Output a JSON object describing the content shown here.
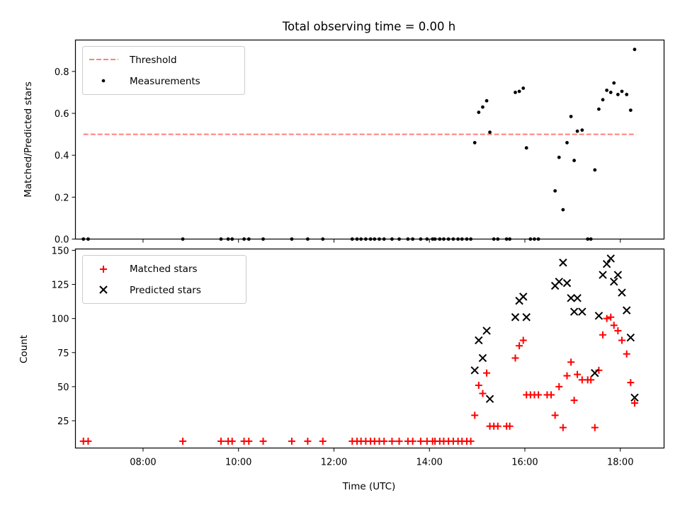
{
  "chart_data": [
    {
      "type": "scatter",
      "title": "Total observing time = 0.00 h",
      "xlabel": "",
      "ylabel": "Matched/Predicted stars",
      "xlim": [
        "06:35",
        "18:55"
      ],
      "ylim": [
        0,
        0.95
      ],
      "yticks": [
        "0.0",
        "0.2",
        "0.4",
        "0.6",
        "0.8"
      ],
      "legend": {
        "position": "upper left",
        "entries": [
          "Threshold",
          "Measurements"
        ]
      },
      "series": [
        {
          "name": "Threshold",
          "kind": "dashed-line",
          "color": "#ff7f7f",
          "x": [
            "06:45",
            "18:20"
          ],
          "y": [
            0.5,
            0.5
          ]
        },
        {
          "name": "Measurements",
          "kind": "dot",
          "color": "#000000",
          "points": [
            [
              "06:45",
              0
            ],
            [
              "06:51",
              0
            ],
            [
              "08:50",
              0
            ],
            [
              "09:38",
              0
            ],
            [
              "09:47",
              0
            ],
            [
              "09:52",
              0
            ],
            [
              "10:07",
              0
            ],
            [
              "10:13",
              0
            ],
            [
              "10:31",
              0
            ],
            [
              "11:07",
              0
            ],
            [
              "11:27",
              0
            ],
            [
              "11:46",
              0
            ],
            [
              "12:23",
              0
            ],
            [
              "12:29",
              0
            ],
            [
              "12:34",
              0
            ],
            [
              "12:40",
              0
            ],
            [
              "12:46",
              0
            ],
            [
              "12:51",
              0
            ],
            [
              "12:57",
              0
            ],
            [
              "13:03",
              0
            ],
            [
              "13:13",
              0
            ],
            [
              "13:22",
              0
            ],
            [
              "13:33",
              0
            ],
            [
              "13:39",
              0
            ],
            [
              "13:49",
              0
            ],
            [
              "13:57",
              0
            ],
            [
              "14:04",
              0
            ],
            [
              "14:07",
              0
            ],
            [
              "14:13",
              0
            ],
            [
              "14:18",
              0
            ],
            [
              "14:24",
              0
            ],
            [
              "14:30",
              0
            ],
            [
              "14:36",
              0
            ],
            [
              "14:41",
              0
            ],
            [
              "14:47",
              0
            ],
            [
              "14:52",
              0
            ],
            [
              "14:57",
              0.46
            ],
            [
              "15:02",
              0.605
            ],
            [
              "15:07",
              0.63
            ],
            [
              "15:12",
              0.66
            ],
            [
              "15:16",
              0.51
            ],
            [
              "15:21",
              0
            ],
            [
              "15:26",
              0
            ],
            [
              "15:37",
              0
            ],
            [
              "15:41",
              0
            ],
            [
              "15:48",
              0.7
            ],
            [
              "15:53",
              0.705
            ],
            [
              "15:58",
              0.72
            ],
            [
              "16:02",
              0.435
            ],
            [
              "16:07",
              0
            ],
            [
              "16:12",
              0
            ],
            [
              "16:17",
              0
            ],
            [
              "16:38",
              0.23
            ],
            [
              "16:43",
              0.39
            ],
            [
              "16:48",
              0.14
            ],
            [
              "16:53",
              0.46
            ],
            [
              "16:58",
              0.585
            ],
            [
              "17:02",
              0.375
            ],
            [
              "17:06",
              0.515
            ],
            [
              "17:12",
              0.52
            ],
            [
              "17:19",
              0
            ],
            [
              "17:23",
              0
            ],
            [
              "17:28",
              0.33
            ],
            [
              "17:33",
              0.62
            ],
            [
              "17:38",
              0.665
            ],
            [
              "17:43",
              0.71
            ],
            [
              "17:48",
              0.7
            ],
            [
              "17:52",
              0.745
            ],
            [
              "17:57",
              0.69
            ],
            [
              "18:02",
              0.705
            ],
            [
              "18:08",
              0.69
            ],
            [
              "18:13",
              0.615
            ],
            [
              "18:18",
              0.905
            ]
          ]
        }
      ]
    },
    {
      "type": "scatter",
      "title": "",
      "xlabel": "Time (UTC)",
      "ylabel": "Count",
      "xlim": [
        "06:35",
        "18:55"
      ],
      "xticks": [
        "08:00",
        "10:00",
        "12:00",
        "14:00",
        "16:00",
        "18:00"
      ],
      "ylim": [
        5,
        151
      ],
      "yticks": [
        "25",
        "50",
        "75",
        "100",
        "125",
        "150"
      ],
      "legend": {
        "position": "upper left",
        "entries": [
          "Matched stars",
          "Predicted stars"
        ]
      },
      "series": [
        {
          "name": "Matched stars",
          "marker": "+",
          "color": "#ff0000",
          "points": [
            [
              "06:45",
              10
            ],
            [
              "06:51",
              10
            ],
            [
              "08:50",
              10
            ],
            [
              "09:38",
              10
            ],
            [
              "09:47",
              10
            ],
            [
              "09:52",
              10
            ],
            [
              "10:07",
              10
            ],
            [
              "10:13",
              10
            ],
            [
              "10:31",
              10
            ],
            [
              "11:07",
              10
            ],
            [
              "11:27",
              10
            ],
            [
              "11:46",
              10
            ],
            [
              "12:23",
              10
            ],
            [
              "12:29",
              10
            ],
            [
              "12:34",
              10
            ],
            [
              "12:40",
              10
            ],
            [
              "12:46",
              10
            ],
            [
              "12:51",
              10
            ],
            [
              "12:57",
              10
            ],
            [
              "13:03",
              10
            ],
            [
              "13:13",
              10
            ],
            [
              "13:22",
              10
            ],
            [
              "13:33",
              10
            ],
            [
              "13:39",
              10
            ],
            [
              "13:49",
              10
            ],
            [
              "13:57",
              10
            ],
            [
              "14:04",
              10
            ],
            [
              "14:07",
              10
            ],
            [
              "14:13",
              10
            ],
            [
              "14:18",
              10
            ],
            [
              "14:24",
              10
            ],
            [
              "14:30",
              10
            ],
            [
              "14:36",
              10
            ],
            [
              "14:41",
              10
            ],
            [
              "14:47",
              10
            ],
            [
              "14:52",
              10
            ],
            [
              "14:57",
              29
            ],
            [
              "15:02",
              51
            ],
            [
              "15:07",
              45
            ],
            [
              "15:12",
              60
            ],
            [
              "15:16",
              21
            ],
            [
              "15:21",
              21
            ],
            [
              "15:26",
              21
            ],
            [
              "15:37",
              21
            ],
            [
              "15:41",
              21
            ],
            [
              "15:48",
              71
            ],
            [
              "15:53",
              80
            ],
            [
              "15:58",
              84
            ],
            [
              "16:02",
              44
            ],
            [
              "16:07",
              44
            ],
            [
              "16:12",
              44
            ],
            [
              "16:17",
              44
            ],
            [
              "16:28",
              44
            ],
            [
              "16:33",
              44
            ],
            [
              "16:38",
              29
            ],
            [
              "16:43",
              50
            ],
            [
              "16:48",
              20
            ],
            [
              "16:53",
              58
            ],
            [
              "16:58",
              68
            ],
            [
              "17:02",
              40
            ],
            [
              "17:06",
              59
            ],
            [
              "17:12",
              55
            ],
            [
              "17:19",
              55
            ],
            [
              "17:23",
              55
            ],
            [
              "17:28",
              20
            ],
            [
              "17:33",
              62
            ],
            [
              "17:38",
              88
            ],
            [
              "17:43",
              100
            ],
            [
              "17:48",
              101
            ],
            [
              "17:52",
              95
            ],
            [
              "17:57",
              91
            ],
            [
              "18:02",
              84
            ],
            [
              "18:08",
              74
            ],
            [
              "18:13",
              53
            ],
            [
              "18:18",
              38
            ]
          ]
        },
        {
          "name": "Predicted stars",
          "marker": "x",
          "color": "#000000",
          "points": [
            [
              "14:57",
              62
            ],
            [
              "15:02",
              84
            ],
            [
              "15:07",
              71
            ],
            [
              "15:12",
              91
            ],
            [
              "15:16",
              41
            ],
            [
              "15:48",
              101
            ],
            [
              "15:53",
              113
            ],
            [
              "15:58",
              116
            ],
            [
              "16:02",
              101
            ],
            [
              "16:38",
              124
            ],
            [
              "16:43",
              127
            ],
            [
              "16:48",
              141
            ],
            [
              "16:53",
              126
            ],
            [
              "16:58",
              115
            ],
            [
              "17:02",
              105
            ],
            [
              "17:06",
              115
            ],
            [
              "17:12",
              105
            ],
            [
              "17:28",
              60
            ],
            [
              "17:33",
              102
            ],
            [
              "17:38",
              132
            ],
            [
              "17:43",
              140
            ],
            [
              "17:48",
              144
            ],
            [
              "17:52",
              127
            ],
            [
              "17:57",
              132
            ],
            [
              "18:02",
              119
            ],
            [
              "18:08",
              106
            ],
            [
              "18:13",
              86
            ],
            [
              "18:18",
              42
            ]
          ]
        }
      ]
    }
  ]
}
